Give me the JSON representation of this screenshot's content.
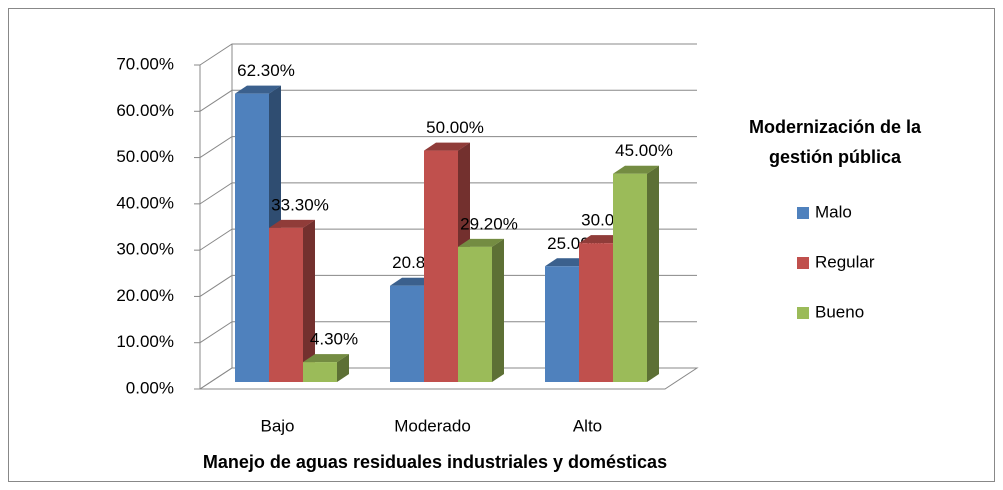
{
  "chart_data": {
    "type": "bar3d",
    "x_label": "Manejo de aguas residuales industriales y domésticas",
    "legend_title": "Modernización de la gestión pública",
    "categories": [
      "Bajo",
      "Moderado",
      "Alto"
    ],
    "series": [
      {
        "name": "Malo",
        "color": "#4f81bd",
        "values": [
          62.3,
          20.8,
          25.0
        ],
        "value_labels": [
          "62.30%",
          "20.80%",
          "25.00%"
        ]
      },
      {
        "name": "Regular",
        "color": "#c0504d",
        "values": [
          33.3,
          50.0,
          30.0
        ],
        "value_labels": [
          "33.30%",
          "50.00%",
          "30.00%"
        ]
      },
      {
        "name": "Bueno",
        "color": "#9bbb59",
        "values": [
          4.3,
          29.2,
          45.0
        ],
        "value_labels": [
          "4.30%",
          "29.20%",
          "45.00%"
        ]
      }
    ],
    "ylim": [
      0,
      70
    ],
    "yticks": [
      {
        "value": 0,
        "label": "0.00%"
      },
      {
        "value": 10,
        "label": "10.00%"
      },
      {
        "value": 20,
        "label": "20.00%"
      },
      {
        "value": 30,
        "label": "30.00%"
      },
      {
        "value": 40,
        "label": "40.00%"
      },
      {
        "value": 50,
        "label": "50.00%"
      },
      {
        "value": 60,
        "label": "60.00%"
      },
      {
        "value": 70,
        "label": "70.00%"
      }
    ],
    "grid": true,
    "legend": "right"
  }
}
